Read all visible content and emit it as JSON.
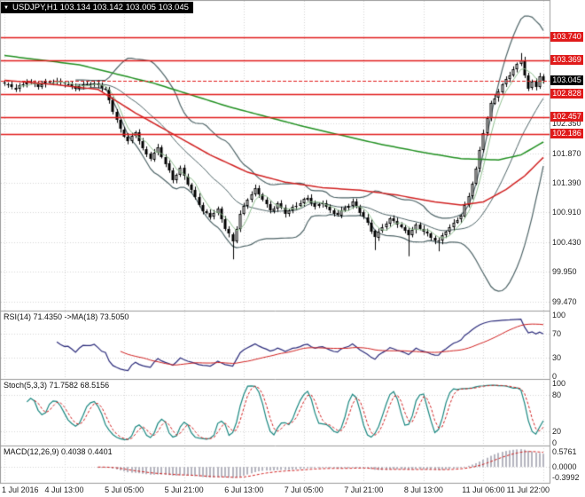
{
  "chart_data": {
    "type": "candlestick",
    "symbol_label": "USDJPY,H1",
    "ohlc_label": "USDJPY,H1 103.134 103.142 103.005 103.045",
    "x_labels": [
      "1 Jul 2016",
      "4 Jul 13:00",
      "5 Jul 05:00",
      "5 Jul 21:00",
      "6 Jul 13:00",
      "7 Jul 05:00",
      "7 Jul 21:00",
      "8 Jul 13:00",
      "11 Jul 06:00",
      "11 Jul 22:00"
    ],
    "main": {
      "bars": 145,
      "price_top": 104.32,
      "price_bottom": 99.32,
      "price_axis_labels": [
        "102.350",
        "101.870",
        "101.390",
        "100.910",
        "100.430",
        "99.950",
        "99.470"
      ],
      "price_axis_values": [
        102.35,
        101.87,
        101.39,
        100.91,
        100.43,
        99.95,
        99.47
      ],
      "hlines": [
        {
          "label": "103.740",
          "value": 103.74,
          "style": "solid"
        },
        {
          "label": "103.369",
          "value": 103.369,
          "style": "solid"
        },
        {
          "label": "103.045",
          "value": 103.045,
          "style": "current"
        },
        {
          "label": "102.828",
          "value": 102.828,
          "style": "solid"
        },
        {
          "label": "102.457",
          "value": 102.457,
          "style": "solid"
        },
        {
          "label": "102.186",
          "value": 102.186,
          "style": "solid"
        }
      ],
      "close_anchors": [
        [
          0,
          102.98
        ],
        [
          3,
          102.92
        ],
        [
          6,
          103.04
        ],
        [
          9,
          102.96
        ],
        [
          12,
          103.02
        ],
        [
          16,
          103.0
        ],
        [
          19,
          102.94
        ],
        [
          22,
          103.0
        ],
        [
          25,
          102.96
        ],
        [
          27,
          102.88
        ],
        [
          29,
          102.55
        ],
        [
          31,
          102.25
        ],
        [
          33,
          102.08
        ],
        [
          35,
          102.22
        ],
        [
          37,
          101.92
        ],
        [
          39,
          101.78
        ],
        [
          41,
          101.95
        ],
        [
          43,
          101.7
        ],
        [
          45,
          101.45
        ],
        [
          47,
          101.62
        ],
        [
          49,
          101.38
        ],
        [
          51,
          101.15
        ],
        [
          53,
          100.92
        ],
        [
          55,
          100.85
        ],
        [
          57,
          100.96
        ],
        [
          59,
          100.66
        ],
        [
          61,
          100.45
        ],
        [
          63,
          100.88
        ],
        [
          65,
          101.12
        ],
        [
          67,
          101.28
        ],
        [
          69,
          101.12
        ],
        [
          71,
          100.94
        ],
        [
          73,
          101.06
        ],
        [
          75,
          100.9
        ],
        [
          77,
          100.98
        ],
        [
          79,
          101.06
        ],
        [
          81,
          101.14
        ],
        [
          83,
          101.0
        ],
        [
          85,
          101.08
        ],
        [
          87,
          100.94
        ],
        [
          89,
          100.88
        ],
        [
          91,
          100.98
        ],
        [
          93,
          101.06
        ],
        [
          95,
          100.92
        ],
        [
          97,
          100.74
        ],
        [
          99,
          100.52
        ],
        [
          101,
          100.68
        ],
        [
          103,
          100.8
        ],
        [
          105,
          100.72
        ],
        [
          107,
          100.6
        ],
        [
          108,
          100.55
        ],
        [
          110,
          100.7
        ],
        [
          112,
          100.62
        ],
        [
          114,
          100.5
        ],
        [
          116,
          100.44
        ],
        [
          118,
          100.6
        ],
        [
          120,
          100.72
        ],
        [
          122,
          100.86
        ],
        [
          124,
          101.18
        ],
        [
          126,
          101.62
        ],
        [
          128,
          102.22
        ],
        [
          130,
          102.66
        ],
        [
          132,
          102.86
        ],
        [
          134,
          103.06
        ],
        [
          136,
          103.22
        ],
        [
          138,
          103.4
        ],
        [
          139,
          103.14
        ],
        [
          140,
          102.92
        ],
        [
          141,
          103.05
        ],
        [
          142,
          102.95
        ],
        [
          143,
          103.1
        ],
        [
          144,
          103.045
        ]
      ],
      "wick_low_overrides": {
        "61": 100.15,
        "99": 100.3,
        "108": 100.2,
        "116": 100.28
      },
      "wick_high_overrides": {
        "138": 103.49
      },
      "green_ma_anchors": [
        [
          0,
          103.45
        ],
        [
          20,
          103.3
        ],
        [
          40,
          103.0
        ],
        [
          60,
          102.62
        ],
        [
          80,
          102.3
        ],
        [
          100,
          102.02
        ],
        [
          112,
          101.88
        ],
        [
          122,
          101.78
        ],
        [
          132,
          101.76
        ],
        [
          138,
          101.84
        ],
        [
          144,
          102.05
        ]
      ],
      "red_ma_anchors": [
        [
          0,
          103.05
        ],
        [
          15,
          102.97
        ],
        [
          25,
          102.9
        ],
        [
          35,
          102.52
        ],
        [
          45,
          102.18
        ],
        [
          55,
          101.84
        ],
        [
          65,
          101.56
        ],
        [
          75,
          101.4
        ],
        [
          85,
          101.31
        ],
        [
          95,
          101.27
        ],
        [
          105,
          101.19
        ],
        [
          115,
          101.08
        ],
        [
          122,
          101.03
        ],
        [
          128,
          101.08
        ],
        [
          134,
          101.28
        ],
        [
          139,
          101.5
        ],
        [
          144,
          101.8
        ]
      ]
    },
    "panels": {
      "rsi": {
        "label": "RSI(14) 71.4350  ->MA(18) 73.5050",
        "axis": [
          "100",
          "70",
          "30",
          "0"
        ],
        "axis_values": [
          100,
          70,
          30,
          0
        ],
        "levels": [
          70,
          30
        ],
        "range": [
          0,
          100
        ]
      },
      "stoch": {
        "label": "Stoch(5,3,3) 71.7582 68.5156",
        "axis": [
          "100",
          "80",
          "20",
          "0"
        ],
        "axis_values": [
          100,
          80,
          20,
          0
        ],
        "levels": [
          80,
          20
        ],
        "range": [
          0,
          100
        ]
      },
      "macd": {
        "label": "MACD(12,26,9) 0.4038 0.4401",
        "axis": [
          "0.5761",
          "0.0000",
          "-0.3992"
        ],
        "axis_values": [
          0.5761,
          0,
          -0.3992
        ],
        "levels": [
          0
        ],
        "range": [
          -0.52,
          0.66
        ]
      }
    },
    "colors": {
      "hline": "#e01b1b",
      "grid": "#d4d4d4",
      "candle_up": "#ffffff",
      "candle_down": "#000000",
      "candle_border": "#000000",
      "bollinger": "#4d6366",
      "ma_green": "#1f8f1f",
      "ma_red": "#d02020",
      "ma_fast": "#8fbf8f",
      "rsi_line": "#2a2a7a",
      "rsi_signal": "#d02020",
      "stoch_line": "#18867f",
      "stoch_signal": "#d02020",
      "macd_hist": "#b4b4bf",
      "macd_signal": "#d02020"
    }
  }
}
